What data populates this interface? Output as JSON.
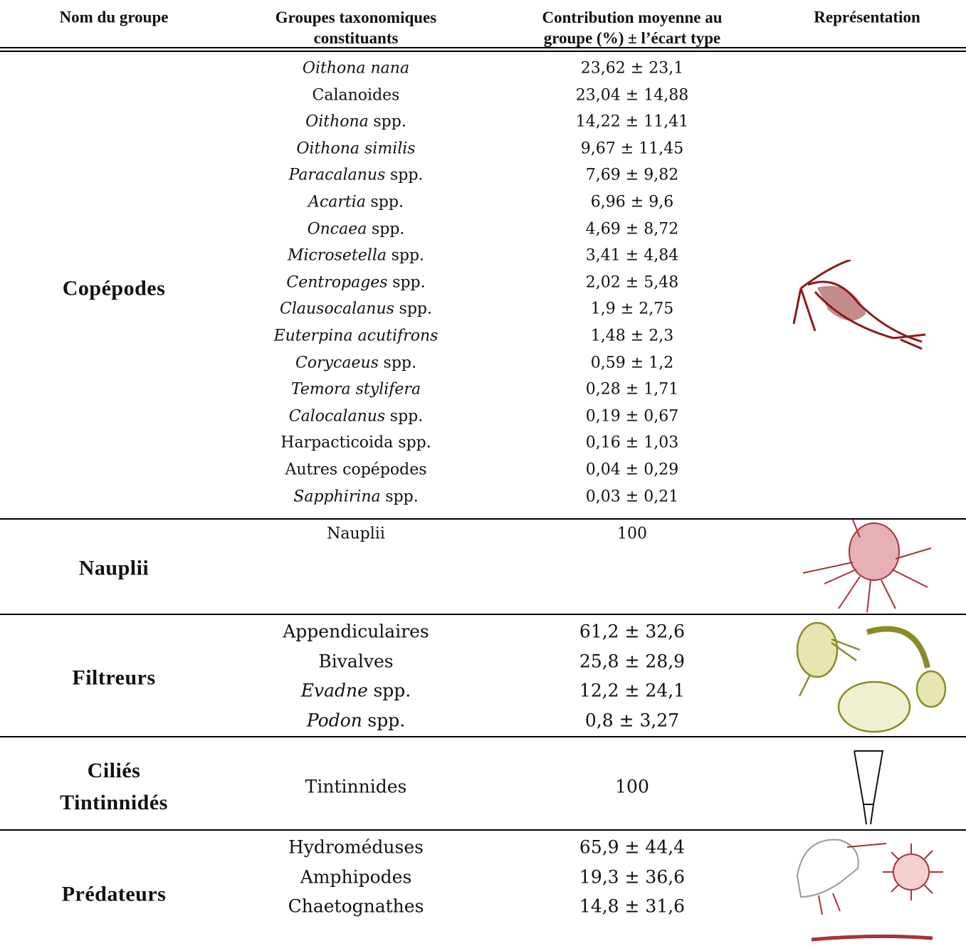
{
  "header": {
    "columns": [
      [
        "Nom du groupe"
      ],
      [
        "Groupes taxonomiques",
        "constituants"
      ],
      [
        "Contribution moyenne au",
        "groupe (%) ± l’écart type"
      ],
      [
        "Représentation"
      ]
    ]
  },
  "groups": [
    {
      "name": [
        "Copépodes"
      ],
      "taxa": [
        {
          "italic": "Oithona nana",
          "value": "23,62 ± 23,1"
        },
        {
          "text": "Calanoides",
          "value": "23,04 ± 14,88"
        },
        {
          "italic": "Oithona",
          "text": "spp.",
          "value": "14,22 ± 11,41"
        },
        {
          "italic": "Oithona similis",
          "value": "9,67 ± 11,45"
        },
        {
          "italic": "Paracalanus",
          "text": "spp.",
          "value": "7,69 ± 9,82"
        },
        {
          "italic": "Acartia",
          "text": "spp.",
          "value": "6,96 ± 9,6"
        },
        {
          "italic": "Oncaea",
          "text": "spp.",
          "value": "4,69 ± 8,72"
        },
        {
          "italic": "Microsetella",
          "text": "spp.",
          "value": "3,41 ± 4,84"
        },
        {
          "italic": "Centropages",
          "text": "spp.",
          "value": "2,02 ± 5,48"
        },
        {
          "italic": "Clausocalanus",
          "text": "spp.",
          "value": "1,9 ± 2,75"
        },
        {
          "italic": "Euterpina acutifrons",
          "value": "1,48 ± 2,3"
        },
        {
          "italic": "Corycaeus",
          "text": "spp.",
          "value": "0,59 ± 1,2"
        },
        {
          "italic": "Temora stylifera",
          "value": "0,28 ± 1,71"
        },
        {
          "italic": "Calocalanus",
          "text": "spp.",
          "value": "0,19 ± 0,67"
        },
        {
          "text": "Harpacticoida spp.",
          "value": "0,16 ± 1,03"
        },
        {
          "text": "Autres copépodes",
          "value": "0,04 ± 0,29"
        },
        {
          "italic": "Sapphirina",
          "text": "spp.",
          "value": "0,03 ± 0,21"
        }
      ]
    },
    {
      "name": [
        "Nauplii"
      ],
      "taxa": [
        {
          "text": "Nauplii",
          "value": "100"
        }
      ]
    },
    {
      "name": [
        "Filtreurs"
      ],
      "taxa": [
        {
          "text": "Appendiculaires",
          "value": "61,2 ± 32,6"
        },
        {
          "text": "Bivalves",
          "value": "25,8 ± 28,9"
        },
        {
          "italic": "Evadne",
          "text": "spp.",
          "value": "12,2 ± 24,1"
        },
        {
          "italic": "Podon",
          "text": "spp.",
          "value": "0,8 ± 3,27"
        }
      ]
    },
    {
      "name": [
        "Ciliés",
        "Tintinnidés"
      ],
      "taxa": [
        {
          "text": "Tintinnides",
          "value": "100"
        }
      ]
    },
    {
      "name": [
        "Prédateurs"
      ],
      "taxa": [
        {
          "text": "Hydroméduses",
          "value": "65,9 ± 44,4"
        },
        {
          "text": "Amphipodes",
          "value": "19,3 ± 36,6"
        },
        {
          "text": "Chaetognathes",
          "value": "14,8 ± 31,6"
        }
      ]
    }
  ]
}
